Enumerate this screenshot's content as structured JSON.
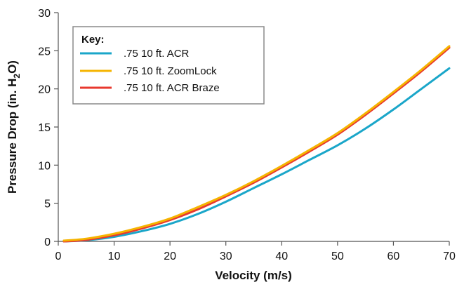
{
  "chart_data": {
    "type": "line",
    "title": "",
    "xlabel": "Velocity (m/s)",
    "ylabel_main": "Pressure Drop (in. H",
    "ylabel_sub": "2",
    "ylabel_end": "O)",
    "xlim": [
      0,
      70
    ],
    "ylim": [
      0,
      30
    ],
    "x_ticks": [
      0,
      10,
      20,
      30,
      40,
      50,
      60,
      70
    ],
    "y_ticks": [
      0,
      5,
      10,
      15,
      20,
      25,
      30
    ],
    "x_tick_labels": [
      "0",
      "10",
      "20",
      "30",
      "40",
      "50",
      "60",
      "70"
    ],
    "y_tick_labels": [
      "0",
      "5",
      "10",
      "15",
      "20",
      "25",
      "30"
    ],
    "grid": false,
    "legend": {
      "title": "Key:",
      "position": "top-left"
    },
    "x": [
      1,
      5,
      10,
      15,
      20,
      25,
      30,
      35,
      40,
      45,
      50,
      55,
      60,
      65,
      70
    ],
    "series": [
      {
        "name": ".75 10 ft. ACR",
        "color": "#1aa6c9",
        "values": [
          0.0,
          0.15,
          0.6,
          1.35,
          2.3,
          3.6,
          5.2,
          7.0,
          8.8,
          10.7,
          12.6,
          14.8,
          17.3,
          20.0,
          22.7
        ]
      },
      {
        "name": ".75 10 ft. ZoomLock",
        "color": "#f5b400",
        "values": [
          0.1,
          0.35,
          1.0,
          1.9,
          3.0,
          4.5,
          6.1,
          7.9,
          9.9,
          12.0,
          14.2,
          16.8,
          19.6,
          22.5,
          25.6
        ]
      },
      {
        "name": ".75 10 ft. ACR Braze",
        "color": "#e8382e",
        "values": [
          0.0,
          0.2,
          0.8,
          1.7,
          2.8,
          4.2,
          5.9,
          7.7,
          9.7,
          11.8,
          14.0,
          16.6,
          19.4,
          22.3,
          25.4
        ]
      }
    ]
  }
}
